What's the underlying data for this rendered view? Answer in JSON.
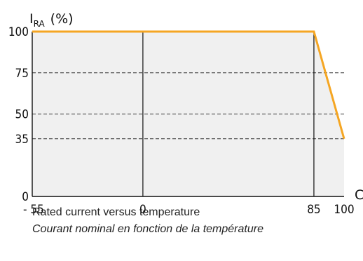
{
  "chart_data": {
    "type": "area",
    "y_label_main": "I",
    "y_label_sub": "RA",
    "y_unit": "(%)",
    "x_unit": "C",
    "x_ticks": [
      {
        "value": -55,
        "label": "- 55"
      },
      {
        "value": 0,
        "label": "0"
      },
      {
        "value": 85,
        "label": "85"
      },
      {
        "value": 100,
        "label": "100"
      }
    ],
    "y_ticks": [
      {
        "value": 0,
        "label": "0"
      },
      {
        "value": 35,
        "label": "35"
      },
      {
        "value": 50,
        "label": "50"
      },
      {
        "value": 75,
        "label": "75"
      },
      {
        "value": 100,
        "label": "100"
      }
    ],
    "dashed_grid_y": [
      35,
      50,
      75
    ],
    "solid_grid_x": [
      0,
      85
    ],
    "series": [
      {
        "x": [
          -55,
          85,
          100
        ],
        "y": [
          100,
          100,
          35
        ],
        "color": "#f5a623"
      }
    ],
    "xlim": [
      -55,
      100
    ],
    "ylim": [
      0,
      100
    ],
    "fill_color": "#f0f0f0"
  },
  "caption": {
    "line1": "Rated current versus temperature",
    "line2": "Courant nominal en fonction de la température"
  }
}
